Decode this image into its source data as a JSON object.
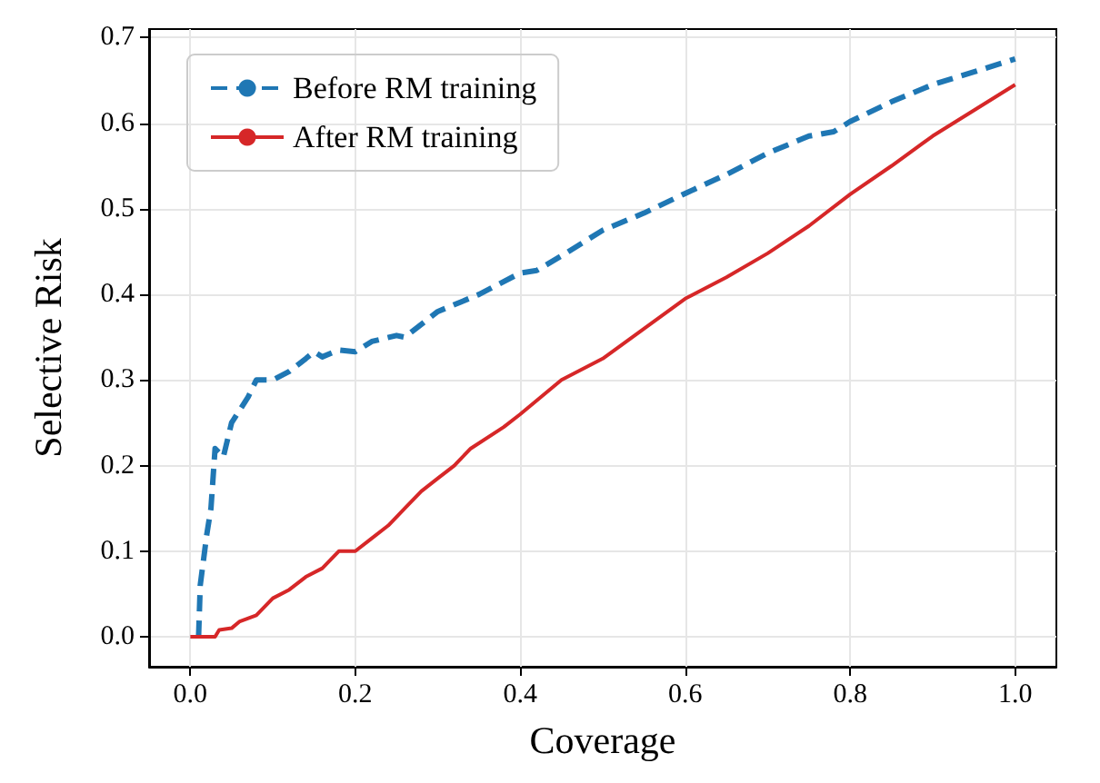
{
  "chart_data": {
    "type": "line",
    "xlabel": "Coverage",
    "ylabel": "Selective Risk",
    "xlim": [
      -0.05,
      1.05
    ],
    "ylim": [
      -0.035,
      0.71
    ],
    "xticks": [
      {
        "value": 0,
        "label": "0.0"
      },
      {
        "value": 0.2,
        "label": "0.2"
      },
      {
        "value": 0.4,
        "label": "0.4"
      },
      {
        "value": 0.6,
        "label": "0.6"
      },
      {
        "value": 0.8,
        "label": "0.8"
      },
      {
        "value": 1,
        "label": "1.0"
      }
    ],
    "yticks": [
      {
        "value": 0,
        "label": "0.0"
      },
      {
        "value": 0.1,
        "label": "0.1"
      },
      {
        "value": 0.2,
        "label": "0.2"
      },
      {
        "value": 0.3,
        "label": "0.3"
      },
      {
        "value": 0.4,
        "label": "0.4"
      },
      {
        "value": 0.5,
        "label": "0.5"
      },
      {
        "value": 0.6,
        "label": "0.6"
      },
      {
        "value": 0.7,
        "label": "0.7"
      }
    ],
    "grid": true,
    "legend": "top left",
    "marker": "none",
    "series": [
      {
        "name": "Before RM training",
        "color": "#1f77b4",
        "line_style": "dashed",
        "x": [
          0.01,
          0.012,
          0.02,
          0.025,
          0.03,
          0.04,
          0.05,
          0.07,
          0.08,
          0.1,
          0.12,
          0.14,
          0.15,
          0.16,
          0.18,
          0.2,
          0.22,
          0.25,
          0.26,
          0.3,
          0.35,
          0.4,
          0.42,
          0.45,
          0.5,
          0.55,
          0.6,
          0.65,
          0.7,
          0.75,
          0.78,
          0.8,
          0.85,
          0.9,
          0.95,
          1.0
        ],
        "values": [
          0,
          0.06,
          0.12,
          0.15,
          0.22,
          0.21,
          0.25,
          0.28,
          0.3,
          0.3,
          0.31,
          0.325,
          0.333,
          0.327,
          0.335,
          0.333,
          0.345,
          0.352,
          0.35,
          0.38,
          0.4,
          0.425,
          0.428,
          0.445,
          0.475,
          0.495,
          0.518,
          0.54,
          0.565,
          0.585,
          0.59,
          0.602,
          0.625,
          0.645,
          0.66,
          0.675
        ]
      },
      {
        "name": "After RM training",
        "color": "#d62728",
        "line_style": "solid",
        "x": [
          0,
          0.03,
          0.035,
          0.05,
          0.06,
          0.08,
          0.1,
          0.12,
          0.14,
          0.16,
          0.18,
          0.2,
          0.22,
          0.24,
          0.26,
          0.28,
          0.3,
          0.32,
          0.34,
          0.38,
          0.4,
          0.45,
          0.5,
          0.55,
          0.6,
          0.65,
          0.7,
          0.75,
          0.8,
          0.85,
          0.9,
          0.95,
          1.0
        ],
        "values": [
          0,
          0,
          0.008,
          0.01,
          0.018,
          0.025,
          0.045,
          0.055,
          0.07,
          0.08,
          0.1,
          0.1,
          0.115,
          0.13,
          0.15,
          0.17,
          0.185,
          0.2,
          0.22,
          0.245,
          0.26,
          0.3,
          0.325,
          0.36,
          0.395,
          0.42,
          0.448,
          0.48,
          0.517,
          0.55,
          0.585,
          0.615,
          0.645
        ]
      }
    ]
  }
}
